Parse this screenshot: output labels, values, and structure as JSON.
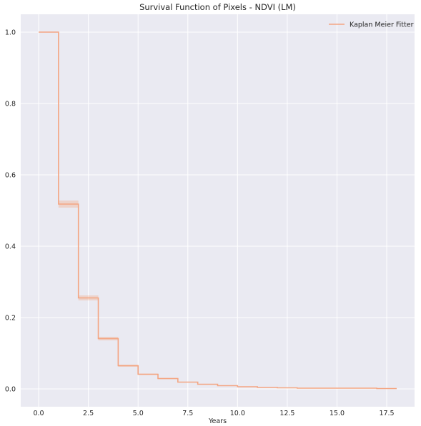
{
  "chart_data": {
    "type": "line",
    "title": "Survival Function of Pixels - NDVI (LM)",
    "xlabel": "Years",
    "ylabel": "",
    "xlim": [
      -0.9,
      18.9
    ],
    "ylim": [
      -0.05,
      1.05
    ],
    "xticks": [
      0.0,
      2.5,
      5.0,
      7.5,
      10.0,
      12.5,
      15.0,
      17.5
    ],
    "xtick_labels": [
      "0.0",
      "2.5",
      "5.0",
      "7.5",
      "10.0",
      "12.5",
      "15.0",
      "17.5"
    ],
    "yticks": [
      0.0,
      0.2,
      0.4,
      0.6,
      0.8,
      1.0
    ],
    "ytick_labels": [
      "0.0",
      "0.2",
      "0.4",
      "0.6",
      "0.8",
      "1.0"
    ],
    "grid": true,
    "legend_position": "top-right",
    "series": [
      {
        "name": "Kaplan Meier Fitter",
        "color": "#f4a582",
        "step": "post",
        "x": [
          0,
          1,
          2,
          3,
          4,
          5,
          6,
          7,
          8,
          9,
          10,
          11,
          12,
          13,
          14,
          15,
          16,
          17,
          18
        ],
        "y": [
          1.0,
          0.518,
          0.255,
          0.141,
          0.065,
          0.041,
          0.029,
          0.019,
          0.013,
          0.009,
          0.006,
          0.004,
          0.003,
          0.002,
          0.002,
          0.002,
          0.002,
          0.001,
          0.001
        ],
        "ci_lower": [
          1.0,
          0.508,
          0.248,
          0.136,
          0.062,
          0.039,
          0.027,
          0.018,
          0.012,
          0.008,
          0.005,
          0.003,
          0.002,
          0.001,
          0.001,
          0.001,
          0.001,
          0.0,
          0.0
        ],
        "ci_upper": [
          1.0,
          0.528,
          0.262,
          0.146,
          0.068,
          0.043,
          0.031,
          0.02,
          0.014,
          0.01,
          0.007,
          0.005,
          0.004,
          0.003,
          0.003,
          0.003,
          0.003,
          0.002,
          0.002
        ]
      }
    ]
  }
}
